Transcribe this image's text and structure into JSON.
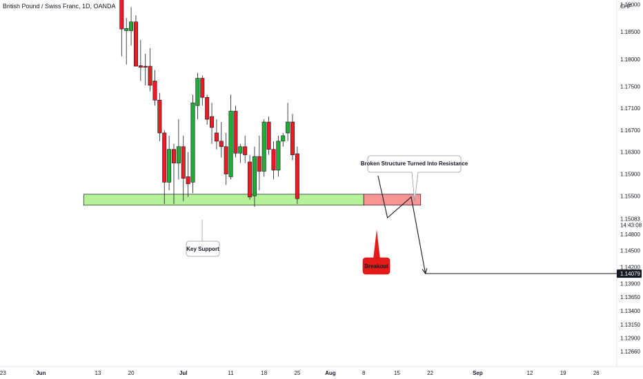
{
  "header": {
    "title": "British Pound / Swiss Franc, 1D, OANDA",
    "currency": "CHF"
  },
  "colors": {
    "bull": "#22ab36",
    "bear": "#e91e22",
    "support_zone": "#b5f29a",
    "resistance_zone": "#f79494",
    "breakout_badge": "#e51a1a",
    "price_tag_bg": "#131722"
  },
  "chart_data": {
    "type": "candlestick",
    "title": "British Pound / Swiss Franc, 1D, OANDA",
    "ylabel": "CHF",
    "ylim": [
      1.1238,
      1.1908
    ],
    "ymin": 1.1238,
    "ymax": 1.1908,
    "y_ticks": [
      "1.19000",
      "1.18500",
      "1.18000",
      "1.17500",
      "1.17100",
      "1.16700",
      "1.16300",
      "1.15900",
      "1.15500",
      "1.15083",
      "1.14800",
      "1.14500",
      "1.14200",
      "1.14079",
      "1.13900",
      "1.13650",
      "1.13400",
      "1.13150",
      "1.12900",
      "1.12660"
    ],
    "current_price": "1.15083",
    "countdown": "14:43:08",
    "target_price": "1.14079",
    "x_ticks": [
      {
        "label": "23",
        "day": -1,
        "major": false
      },
      {
        "label": "Jun",
        "day": 7,
        "major": true
      },
      {
        "label": "13",
        "day": 19,
        "major": false
      },
      {
        "label": "20",
        "day": 26,
        "major": false
      },
      {
        "label": "Jul",
        "day": 37,
        "major": true
      },
      {
        "label": "11",
        "day": 47,
        "major": false
      },
      {
        "label": "18",
        "day": 54,
        "major": false
      },
      {
        "label": "25",
        "day": 61,
        "major": false
      },
      {
        "label": "Aug",
        "day": 68,
        "major": true
      },
      {
        "label": "8",
        "day": 75,
        "major": false
      },
      {
        "label": "15",
        "day": 82,
        "major": false
      },
      {
        "label": "22",
        "day": 89,
        "major": false
      },
      {
        "label": "Sep",
        "day": 99,
        "major": true
      },
      {
        "label": "12",
        "day": 110,
        "major": false
      },
      {
        "label": "19",
        "day": 117,
        "major": false
      },
      {
        "label": "26",
        "day": 124,
        "major": false
      }
    ],
    "candles": [
      {
        "day": 24,
        "open": 1.1935,
        "high": 1.1955,
        "low": 1.1805,
        "close": 1.1855
      },
      {
        "day": 25,
        "open": 1.1852,
        "high": 1.1875,
        "low": 1.179,
        "close": 1.1856
      },
      {
        "day": 26,
        "open": 1.1852,
        "high": 1.1895,
        "low": 1.1825,
        "close": 1.1868
      },
      {
        "day": 27,
        "open": 1.1868,
        "high": 1.188,
        "low": 1.179,
        "close": 1.1787
      },
      {
        "day": 28,
        "open": 1.1788,
        "high": 1.1835,
        "low": 1.176,
        "close": 1.1785
      },
      {
        "day": 29,
        "open": 1.1787,
        "high": 1.181,
        "low": 1.1752,
        "close": 1.1785
      },
      {
        "day": 30,
        "open": 1.1787,
        "high": 1.182,
        "low": 1.1741,
        "close": 1.1752
      },
      {
        "day": 31,
        "open": 1.176,
        "high": 1.178,
        "low": 1.1715,
        "close": 1.1725
      },
      {
        "day": 32,
        "open": 1.1725,
        "high": 1.1738,
        "low": 1.165,
        "close": 1.1665
      },
      {
        "day": 33,
        "open": 1.1665,
        "high": 1.167,
        "low": 1.1535,
        "close": 1.1575
      },
      {
        "day": 34,
        "open": 1.1575,
        "high": 1.166,
        "low": 1.156,
        "close": 1.1635
      },
      {
        "day": 35,
        "open": 1.1635,
        "high": 1.1645,
        "low": 1.1535,
        "close": 1.161
      },
      {
        "day": 36,
        "open": 1.161,
        "high": 1.169,
        "low": 1.158,
        "close": 1.164
      },
      {
        "day": 37,
        "open": 1.164,
        "high": 1.166,
        "low": 1.154,
        "close": 1.1582
      },
      {
        "day": 38,
        "open": 1.1585,
        "high": 1.163,
        "low": 1.1548,
        "close": 1.1572
      },
      {
        "day": 39,
        "open": 1.1575,
        "high": 1.1735,
        "low": 1.1555,
        "close": 1.172
      },
      {
        "day": 40,
        "open": 1.1715,
        "high": 1.1775,
        "low": 1.169,
        "close": 1.1765
      },
      {
        "day": 41,
        "open": 1.1765,
        "high": 1.177,
        "low": 1.1715,
        "close": 1.173
      },
      {
        "day": 42,
        "open": 1.173,
        "high": 1.1735,
        "low": 1.168,
        "close": 1.169
      },
      {
        "day": 43,
        "open": 1.1695,
        "high": 1.172,
        "low": 1.1645,
        "close": 1.1675
      },
      {
        "day": 44,
        "open": 1.1665,
        "high": 1.169,
        "low": 1.1635,
        "close": 1.165
      },
      {
        "day": 45,
        "open": 1.165,
        "high": 1.1685,
        "low": 1.162,
        "close": 1.164
      },
      {
        "day": 46,
        "open": 1.164,
        "high": 1.1665,
        "low": 1.157,
        "close": 1.159
      },
      {
        "day": 47,
        "open": 1.1585,
        "high": 1.1735,
        "low": 1.158,
        "close": 1.1705
      },
      {
        "day": 48,
        "open": 1.1705,
        "high": 1.1715,
        "low": 1.162,
        "close": 1.1628
      },
      {
        "day": 49,
        "open": 1.1628,
        "high": 1.1645,
        "low": 1.161,
        "close": 1.164
      },
      {
        "day": 50,
        "open": 1.164,
        "high": 1.166,
        "low": 1.161,
        "close": 1.1625
      },
      {
        "day": 51,
        "open": 1.1612,
        "high": 1.1625,
        "low": 1.1543,
        "close": 1.1548
      },
      {
        "day": 52,
        "open": 1.155,
        "high": 1.164,
        "low": 1.153,
        "close": 1.1622
      },
      {
        "day": 53,
        "open": 1.1622,
        "high": 1.166,
        "low": 1.156,
        "close": 1.1595
      },
      {
        "day": 54,
        "open": 1.1595,
        "high": 1.169,
        "low": 1.1585,
        "close": 1.1685
      },
      {
        "day": 55,
        "open": 1.1685,
        "high": 1.1695,
        "low": 1.1625,
        "close": 1.1635
      },
      {
        "day": 56,
        "open": 1.1635,
        "high": 1.165,
        "low": 1.158,
        "close": 1.1597
      },
      {
        "day": 57,
        "open": 1.1597,
        "high": 1.166,
        "low": 1.1585,
        "close": 1.165
      },
      {
        "day": 58,
        "open": 1.165,
        "high": 1.1665,
        "low": 1.164,
        "close": 1.166
      },
      {
        "day": 59,
        "open": 1.1665,
        "high": 1.172,
        "low": 1.165,
        "close": 1.1685
      },
      {
        "day": 60,
        "open": 1.1685,
        "high": 1.17,
        "low": 1.1615,
        "close": 1.1625
      },
      {
        "day": 61,
        "open": 1.1627,
        "high": 1.164,
        "low": 1.1535,
        "close": 1.1545
      }
    ],
    "support_zone": {
      "y_top": 1.1553,
      "y_bottom": 1.1533,
      "day_start": 16,
      "day_end": 75
    },
    "resistance_zone": {
      "y_top": 1.1553,
      "y_bottom": 1.1533,
      "day_start": 75,
      "day_end": 87
    },
    "projection_path": [
      {
        "day": 78,
        "y": 1.1587
      },
      {
        "day": 80,
        "y": 1.151
      },
      {
        "day": 85,
        "y": 1.1548
      },
      {
        "day": 88,
        "y": 1.1408
      }
    ],
    "target_line": {
      "y": 1.1408,
      "day_start": 88
    }
  },
  "annotations": {
    "key_support": "Key Support",
    "breakout": "Breakout",
    "broken_structure": "Broken Structure Turned Into Resistance"
  }
}
